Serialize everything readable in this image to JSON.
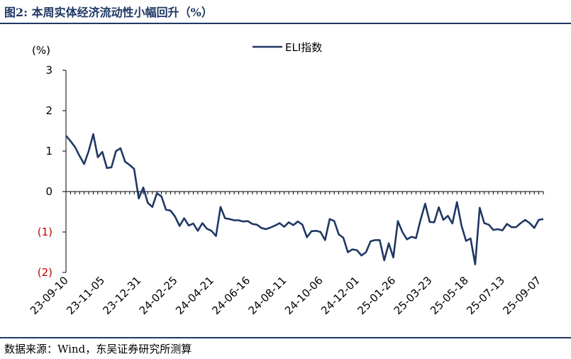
{
  "figure": {
    "title": "图2:  本周实体经济流动性小幅回升（%）",
    "source": "数据来源：Wind，东吴证券研究所测算"
  },
  "colors": {
    "series": "#1f3864",
    "negative_tick": "#c00000",
    "axis": "#000000"
  },
  "chart_data": {
    "type": "line",
    "ylabel": "(%)",
    "ylim": [
      -2,
      3
    ],
    "yticks": [
      {
        "value": 3,
        "label": "3"
      },
      {
        "value": 2,
        "label": "2"
      },
      {
        "value": 1,
        "label": "1"
      },
      {
        "value": 0,
        "label": "0"
      },
      {
        "value": -1,
        "label": "(1)"
      },
      {
        "value": -2,
        "label": "(2)"
      }
    ],
    "xlim": [
      "2023-09-10",
      "2025-09-14"
    ],
    "xticks": [
      "23-09-10",
      "23-11-05",
      "23-12-31",
      "24-02-25",
      "24-04-21",
      "24-06-16",
      "24-08-11",
      "24-10-06",
      "24-12-01",
      "25-01-26",
      "25-03-23",
      "25-05-18",
      "25-07-13",
      "25-09-07"
    ],
    "legend_position": "top-center",
    "grid": false,
    "series": [
      {
        "name": "ELI指数",
        "points": [
          [
            "2023-09-10",
            1.38
          ],
          [
            "2023-09-17",
            1.25
          ],
          [
            "2023-09-24",
            1.1
          ],
          [
            "2023-10-01",
            0.88
          ],
          [
            "2023-10-08",
            0.68
          ],
          [
            "2023-10-15",
            1.0
          ],
          [
            "2023-10-22",
            1.42
          ],
          [
            "2023-10-29",
            0.85
          ],
          [
            "2023-11-05",
            0.98
          ],
          [
            "2023-11-12",
            0.58
          ],
          [
            "2023-11-19",
            0.6
          ],
          [
            "2023-11-26",
            1.0
          ],
          [
            "2023-12-03",
            1.07
          ],
          [
            "2023-12-10",
            0.74
          ],
          [
            "2023-12-17",
            0.66
          ],
          [
            "2023-12-24",
            0.56
          ],
          [
            "2023-12-31",
            -0.17
          ],
          [
            "2024-01-07",
            0.1
          ],
          [
            "2024-01-14",
            -0.28
          ],
          [
            "2024-01-21",
            -0.38
          ],
          [
            "2024-01-28",
            -0.04
          ],
          [
            "2024-02-04",
            -0.12
          ],
          [
            "2024-02-11",
            -0.45
          ],
          [
            "2024-02-18",
            -0.47
          ],
          [
            "2024-02-25",
            -0.62
          ],
          [
            "2024-03-03",
            -0.85
          ],
          [
            "2024-03-10",
            -0.66
          ],
          [
            "2024-03-17",
            -0.84
          ],
          [
            "2024-03-24",
            -0.79
          ],
          [
            "2024-03-31",
            -0.97
          ],
          [
            "2024-04-07",
            -0.78
          ],
          [
            "2024-04-14",
            -0.92
          ],
          [
            "2024-04-21",
            -0.97
          ],
          [
            "2024-04-28",
            -1.1
          ],
          [
            "2024-05-05",
            -0.38
          ],
          [
            "2024-05-12",
            -0.66
          ],
          [
            "2024-05-19",
            -0.68
          ],
          [
            "2024-05-26",
            -0.71
          ],
          [
            "2024-06-02",
            -0.71
          ],
          [
            "2024-06-09",
            -0.74
          ],
          [
            "2024-06-16",
            -0.73
          ],
          [
            "2024-06-23",
            -0.8
          ],
          [
            "2024-06-30",
            -0.82
          ],
          [
            "2024-07-07",
            -0.9
          ],
          [
            "2024-07-14",
            -0.93
          ],
          [
            "2024-07-21",
            -0.89
          ],
          [
            "2024-07-28",
            -0.84
          ],
          [
            "2024-08-04",
            -0.78
          ],
          [
            "2024-08-11",
            -0.87
          ],
          [
            "2024-08-18",
            -0.76
          ],
          [
            "2024-08-25",
            -0.83
          ],
          [
            "2024-09-01",
            -0.74
          ],
          [
            "2024-09-08",
            -0.82
          ],
          [
            "2024-09-15",
            -1.13
          ],
          [
            "2024-09-22",
            -0.98
          ],
          [
            "2024-09-29",
            -0.97
          ],
          [
            "2024-10-06",
            -1.0
          ],
          [
            "2024-10-13",
            -1.2
          ],
          [
            "2024-10-20",
            -0.68
          ],
          [
            "2024-10-27",
            -0.73
          ],
          [
            "2024-11-03",
            -1.06
          ],
          [
            "2024-11-10",
            -1.14
          ],
          [
            "2024-11-17",
            -1.5
          ],
          [
            "2024-11-24",
            -1.43
          ],
          [
            "2024-12-01",
            -1.45
          ],
          [
            "2024-12-08",
            -1.58
          ],
          [
            "2024-12-15",
            -1.5
          ],
          [
            "2024-12-22",
            -1.23
          ],
          [
            "2024-12-29",
            -1.2
          ],
          [
            "2025-01-05",
            -1.2
          ],
          [
            "2025-01-12",
            -1.7
          ],
          [
            "2025-01-19",
            -1.28
          ],
          [
            "2025-01-26",
            -1.63
          ],
          [
            "2025-02-02",
            -0.73
          ],
          [
            "2025-02-09",
            -1.0
          ],
          [
            "2025-02-16",
            -1.18
          ],
          [
            "2025-02-23",
            -1.12
          ],
          [
            "2025-03-02",
            -1.15
          ],
          [
            "2025-03-09",
            -0.7
          ],
          [
            "2025-03-16",
            -0.3
          ],
          [
            "2025-03-23",
            -0.75
          ],
          [
            "2025-03-30",
            -0.76
          ],
          [
            "2025-04-06",
            -0.39
          ],
          [
            "2025-04-13",
            -0.7
          ],
          [
            "2025-04-20",
            -0.6
          ],
          [
            "2025-04-27",
            -0.79
          ],
          [
            "2025-05-04",
            -0.26
          ],
          [
            "2025-05-11",
            -0.84
          ],
          [
            "2025-05-18",
            -1.22
          ],
          [
            "2025-05-25",
            -1.16
          ],
          [
            "2025-06-01",
            -1.8
          ],
          [
            "2025-06-08",
            -0.4
          ],
          [
            "2025-06-15",
            -0.78
          ],
          [
            "2025-06-22",
            -0.82
          ],
          [
            "2025-06-29",
            -0.95
          ],
          [
            "2025-07-06",
            -0.93
          ],
          [
            "2025-07-13",
            -0.96
          ],
          [
            "2025-07-20",
            -0.8
          ],
          [
            "2025-07-27",
            -0.88
          ],
          [
            "2025-08-03",
            -0.88
          ],
          [
            "2025-08-10",
            -0.78
          ],
          [
            "2025-08-17",
            -0.7
          ],
          [
            "2025-08-24",
            -0.78
          ],
          [
            "2025-08-31",
            -0.9
          ],
          [
            "2025-09-07",
            -0.7
          ],
          [
            "2025-09-14",
            -0.68
          ]
        ]
      }
    ]
  }
}
